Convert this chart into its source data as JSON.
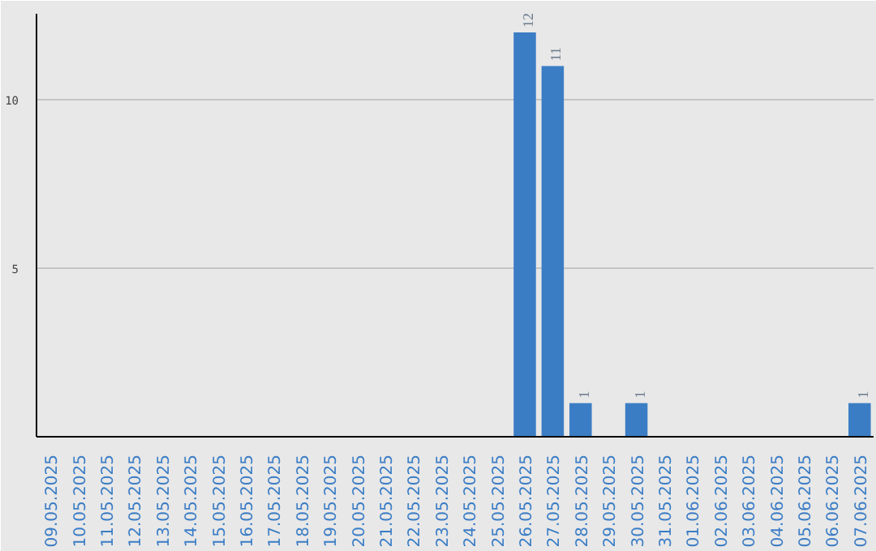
{
  "chart_data": {
    "type": "bar",
    "categories": [
      "09.05.2025",
      "10.05.2025",
      "11.05.2025",
      "12.05.2025",
      "13.05.2025",
      "14.05.2025",
      "15.05.2025",
      "16.05.2025",
      "17.05.2025",
      "18.05.2025",
      "19.05.2025",
      "20.05.2025",
      "21.05.2025",
      "22.05.2025",
      "23.05.2025",
      "24.05.2025",
      "25.05.2025",
      "26.05.2025",
      "27.05.2025",
      "28.05.2025",
      "29.05.2025",
      "30.05.2025",
      "31.05.2025",
      "01.06.2025",
      "02.06.2025",
      "03.06.2025",
      "04.06.2025",
      "05.06.2025",
      "06.06.2025",
      "07.06.2025"
    ],
    "values": [
      0,
      0,
      0,
      0,
      0,
      0,
      0,
      0,
      0,
      0,
      0,
      0,
      0,
      0,
      0,
      0,
      0,
      12,
      11,
      1,
      0,
      1,
      0,
      0,
      0,
      0,
      0,
      0,
      0,
      1
    ],
    "value_labels": [
      null,
      null,
      null,
      null,
      null,
      null,
      null,
      null,
      null,
      null,
      null,
      null,
      null,
      null,
      null,
      null,
      null,
      "12",
      "11",
      "1",
      null,
      "1",
      null,
      null,
      null,
      null,
      null,
      null,
      null,
      "1"
    ],
    "color": "#3b7dc5",
    "ylim": [
      0,
      12.55
    ],
    "yticks": [
      5,
      10
    ],
    "grid": "y"
  }
}
